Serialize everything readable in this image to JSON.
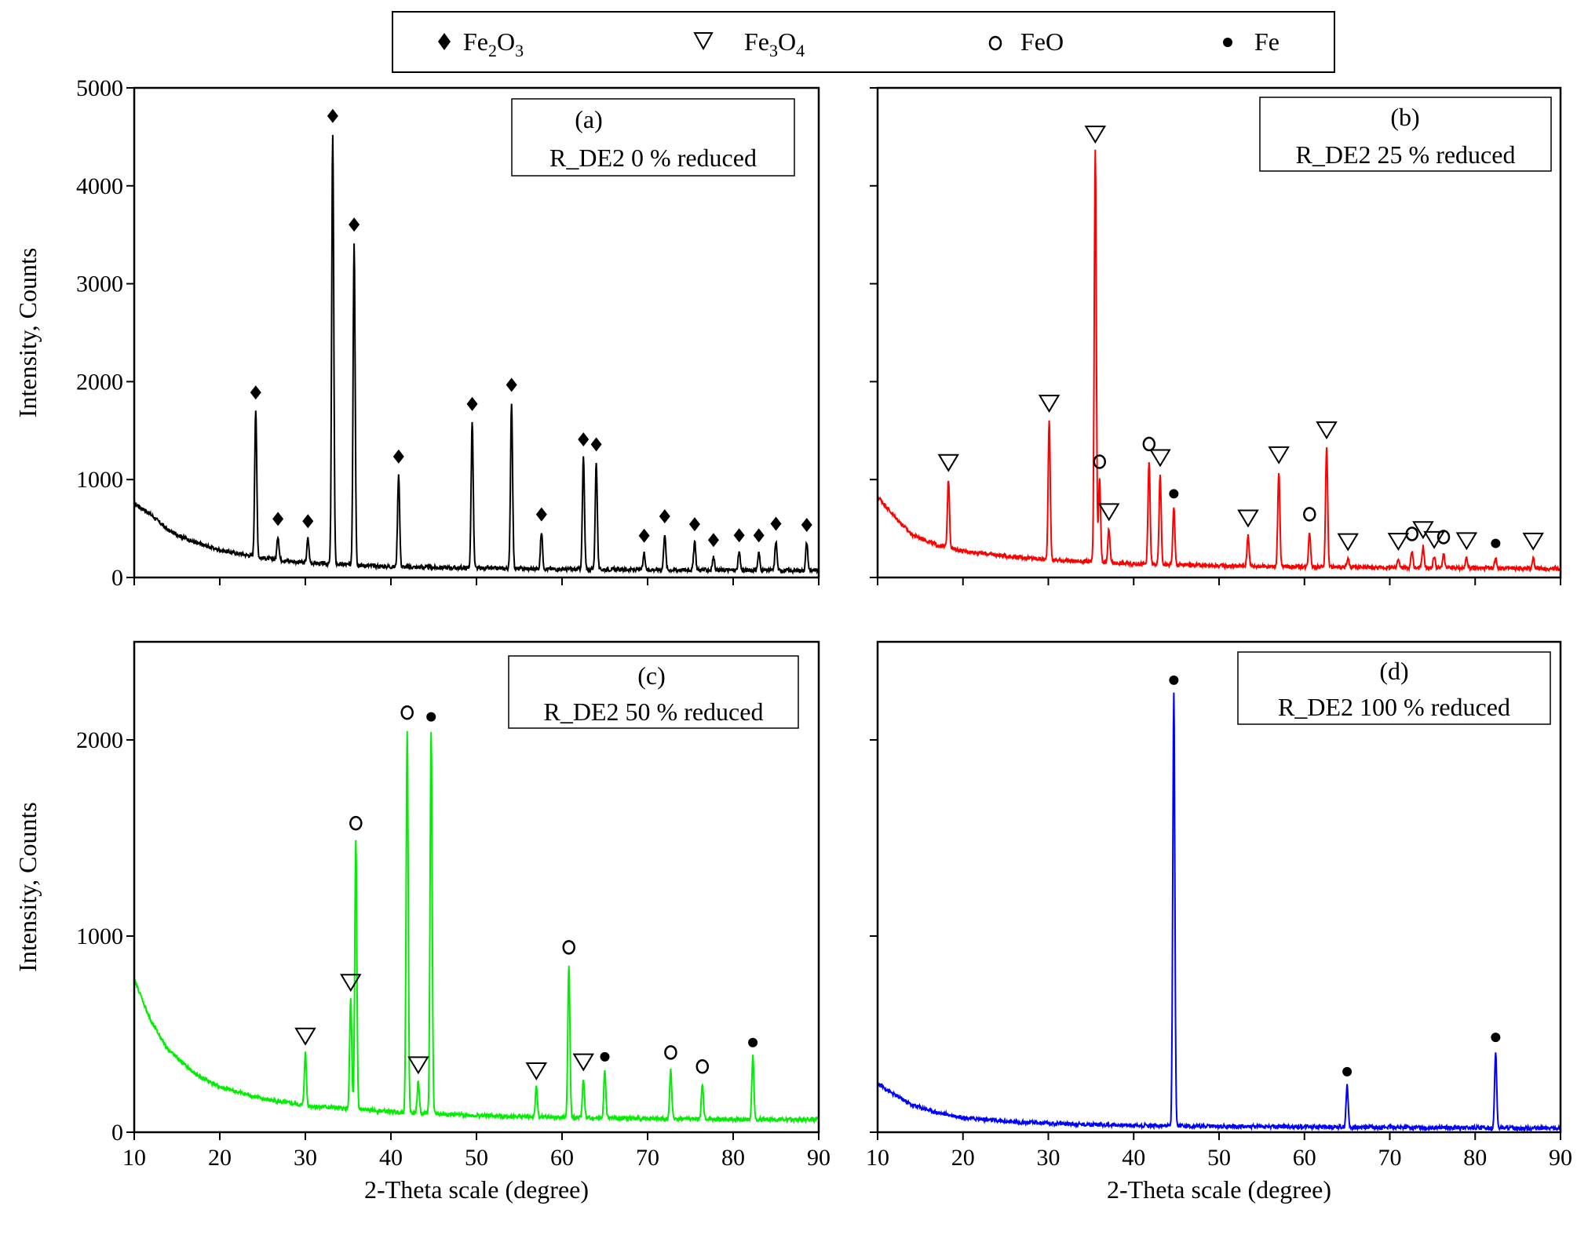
{
  "legend": {
    "items": [
      {
        "symbol": "diamond",
        "text": "Fe",
        "sub1": "2",
        "mid": "O",
        "sub2": "3"
      },
      {
        "symbol": "triangle",
        "text": "Fe",
        "sub1": "3",
        "mid": "O",
        "sub2": "4"
      },
      {
        "symbol": "circle",
        "text": "FeO",
        "sub1": "",
        "mid": "",
        "sub2": ""
      },
      {
        "symbol": "dot",
        "text": "Fe",
        "sub1": "",
        "mid": "",
        "sub2": ""
      }
    ]
  },
  "chart_data": [
    {
      "id": "a",
      "type": "line",
      "letter": "(a)",
      "label": "R_DE2 0 % reduced",
      "color": "#000000",
      "xlim": [
        10,
        90
      ],
      "ylim": [
        0,
        5000
      ],
      "xticks": [
        10,
        20,
        30,
        40,
        50,
        60,
        70,
        80,
        90
      ],
      "yticks": [
        0,
        1000,
        2000,
        3000,
        4000,
        5000
      ],
      "ytick_labels": [
        "0",
        "1000",
        "2000",
        "3000",
        "4000",
        "5000"
      ],
      "show_xlabels": false,
      "show_ylabels": true,
      "xlabel": "",
      "ylabel": "Intensity, Counts",
      "background": [
        [
          10,
          760
        ],
        [
          12,
          640
        ],
        [
          14,
          480
        ],
        [
          17,
          360
        ],
        [
          20,
          280
        ],
        [
          25,
          200
        ],
        [
          30,
          150
        ],
        [
          40,
          110
        ],
        [
          50,
          95
        ],
        [
          60,
          85
        ],
        [
          70,
          80
        ],
        [
          80,
          75
        ],
        [
          90,
          70
        ]
      ],
      "peaks": [
        {
          "x": 24.2,
          "h": 1500,
          "m": "diamond"
        },
        {
          "x": 26.8,
          "h": 240,
          "m": "diamond"
        },
        {
          "x": 30.3,
          "h": 250,
          "m": "diamond"
        },
        {
          "x": 33.2,
          "h": 4400,
          "m": "diamond"
        },
        {
          "x": 35.7,
          "h": 3300,
          "m": "diamond"
        },
        {
          "x": 40.9,
          "h": 950,
          "m": "diamond"
        },
        {
          "x": 49.5,
          "h": 1500,
          "m": "diamond"
        },
        {
          "x": 54.1,
          "h": 1700,
          "m": "diamond"
        },
        {
          "x": 57.6,
          "h": 380,
          "m": "diamond"
        },
        {
          "x": 62.5,
          "h": 1150,
          "m": "diamond"
        },
        {
          "x": 64.0,
          "h": 1100,
          "m": "diamond"
        },
        {
          "x": 69.6,
          "h": 170,
          "m": "diamond"
        },
        {
          "x": 72.0,
          "h": 370,
          "m": "diamond"
        },
        {
          "x": 75.5,
          "h": 290,
          "m": "diamond"
        },
        {
          "x": 77.7,
          "h": 130,
          "m": "diamond"
        },
        {
          "x": 80.7,
          "h": 180,
          "m": "diamond"
        },
        {
          "x": 83.0,
          "h": 180,
          "m": "diamond"
        },
        {
          "x": 85.0,
          "h": 300,
          "m": "diamond"
        },
        {
          "x": 88.6,
          "h": 290,
          "m": "diamond"
        }
      ]
    },
    {
      "id": "b",
      "type": "line",
      "letter": "(b)",
      "label": "R_DE2 25 % reduced",
      "color": "#ff0000",
      "xlim": [
        10,
        90
      ],
      "ylim": [
        0,
        5000
      ],
      "xticks": [
        10,
        20,
        30,
        40,
        50,
        60,
        70,
        80,
        90
      ],
      "yticks": [
        0,
        1000,
        2000,
        3000,
        4000,
        5000
      ],
      "ytick_labels": [
        "",
        "",
        "",
        "",
        "",
        ""
      ],
      "show_xlabels": false,
      "show_ylabels": false,
      "xlabel": "",
      "ylabel": "",
      "background": [
        [
          10,
          830
        ],
        [
          12,
          620
        ],
        [
          14,
          440
        ],
        [
          17,
          330
        ],
        [
          20,
          270
        ],
        [
          25,
          220
        ],
        [
          30,
          180
        ],
        [
          40,
          140
        ],
        [
          50,
          120
        ],
        [
          60,
          110
        ],
        [
          70,
          100
        ],
        [
          80,
          95
        ],
        [
          90,
          90
        ]
      ],
      "peaks": [
        {
          "x": 18.3,
          "h": 700,
          "m": "triangle"
        },
        {
          "x": 30.1,
          "h": 1430,
          "m": "triangle"
        },
        {
          "x": 35.5,
          "h": 4200,
          "m": "triangle"
        },
        {
          "x": 36.0,
          "h": 850,
          "m": "circle"
        },
        {
          "x": 37.1,
          "h": 350,
          "m": "triangle"
        },
        {
          "x": 41.8,
          "h": 1050,
          "m": "circle"
        },
        {
          "x": 43.1,
          "h": 920,
          "m": "triangle"
        },
        {
          "x": 44.7,
          "h": 580,
          "m": "dot"
        },
        {
          "x": 53.4,
          "h": 320,
          "m": "triangle"
        },
        {
          "x": 57.0,
          "h": 970,
          "m": "triangle"
        },
        {
          "x": 60.6,
          "h": 360,
          "m": "circle"
        },
        {
          "x": 62.6,
          "h": 1230,
          "m": "triangle"
        },
        {
          "x": 65.1,
          "h": 90,
          "m": "triangle"
        },
        {
          "x": 71.0,
          "h": 100,
          "m": "triangle"
        },
        {
          "x": 72.6,
          "h": 170,
          "m": "circle"
        },
        {
          "x": 73.9,
          "h": 220,
          "m": "triangle"
        },
        {
          "x": 75.2,
          "h": 120,
          "m": "triangle"
        },
        {
          "x": 76.3,
          "h": 140,
          "m": "circle"
        },
        {
          "x": 79.0,
          "h": 110,
          "m": "triangle"
        },
        {
          "x": 82.4,
          "h": 110,
          "m": "dot"
        },
        {
          "x": 86.8,
          "h": 110,
          "m": "triangle"
        }
      ]
    },
    {
      "id": "c",
      "type": "line",
      "letter": "(c)",
      "label": "R_DE2 50 % reduced",
      "color": "#00ee00",
      "xlim": [
        10,
        90
      ],
      "ylim": [
        0,
        2500
      ],
      "xticks": [
        10,
        20,
        30,
        40,
        50,
        60,
        70,
        80,
        90
      ],
      "xtick_labels": [
        "10",
        "20",
        "30",
        "40",
        "50",
        "60",
        "70",
        "80",
        "90"
      ],
      "yticks": [
        0,
        1000,
        2000
      ],
      "ytick_labels": [
        "0",
        "1000",
        "2000"
      ],
      "show_xlabels": true,
      "show_ylabels": true,
      "xlabel": "2-Theta scale (degree)",
      "ylabel": "Intensity, Counts",
      "background": [
        [
          10,
          780
        ],
        [
          12,
          560
        ],
        [
          14,
          420
        ],
        [
          17,
          300
        ],
        [
          20,
          230
        ],
        [
          25,
          170
        ],
        [
          30,
          135
        ],
        [
          40,
          105
        ],
        [
          50,
          85
        ],
        [
          60,
          75
        ],
        [
          70,
          70
        ],
        [
          80,
          65
        ],
        [
          90,
          65
        ]
      ],
      "peaks": [
        {
          "x": 30.0,
          "h": 270,
          "m": "triangle"
        },
        {
          "x": 35.3,
          "h": 560,
          "m": "triangle"
        },
        {
          "x": 35.9,
          "h": 1370,
          "m": "circle"
        },
        {
          "x": 41.9,
          "h": 1950,
          "m": "circle"
        },
        {
          "x": 43.2,
          "h": 160,
          "m": "triangle"
        },
        {
          "x": 44.7,
          "h": 1950,
          "m": "dot"
        },
        {
          "x": 57.0,
          "h": 150,
          "m": "triangle"
        },
        {
          "x": 60.8,
          "h": 780,
          "m": "circle"
        },
        {
          "x": 62.5,
          "h": 200,
          "m": "triangle"
        },
        {
          "x": 65.0,
          "h": 240,
          "m": "dot"
        },
        {
          "x": 72.7,
          "h": 250,
          "m": "circle"
        },
        {
          "x": 76.4,
          "h": 180,
          "m": "circle"
        },
        {
          "x": 82.3,
          "h": 320,
          "m": "dot"
        }
      ]
    },
    {
      "id": "d",
      "type": "line",
      "letter": "(d)",
      "label": "R_DE2 100 % reduced",
      "color": "#0000ff",
      "xlim": [
        10,
        90
      ],
      "ylim": [
        0,
        2500
      ],
      "xticks": [
        10,
        20,
        30,
        40,
        50,
        60,
        70,
        80,
        90
      ],
      "xtick_labels": [
        "10",
        "20",
        "30",
        "40",
        "50",
        "60",
        "70",
        "80",
        "90"
      ],
      "yticks": [
        0,
        1000,
        2000
      ],
      "ytick_labels": [
        "",
        "",
        ""
      ],
      "show_xlabels": true,
      "show_ylabels": false,
      "xlabel": "2-Theta scale (degree)",
      "ylabel": "",
      "background": [
        [
          10,
          250
        ],
        [
          12,
          190
        ],
        [
          14,
          140
        ],
        [
          17,
          100
        ],
        [
          20,
          75
        ],
        [
          25,
          55
        ],
        [
          30,
          45
        ],
        [
          40,
          35
        ],
        [
          50,
          30
        ],
        [
          60,
          28
        ],
        [
          70,
          25
        ],
        [
          80,
          22
        ],
        [
          90,
          20
        ]
      ],
      "peaks": [
        {
          "x": 44.7,
          "h": 2200,
          "m": "dot"
        },
        {
          "x": 65.0,
          "h": 210,
          "m": "dot"
        },
        {
          "x": 82.4,
          "h": 390,
          "m": "dot"
        }
      ]
    }
  ]
}
